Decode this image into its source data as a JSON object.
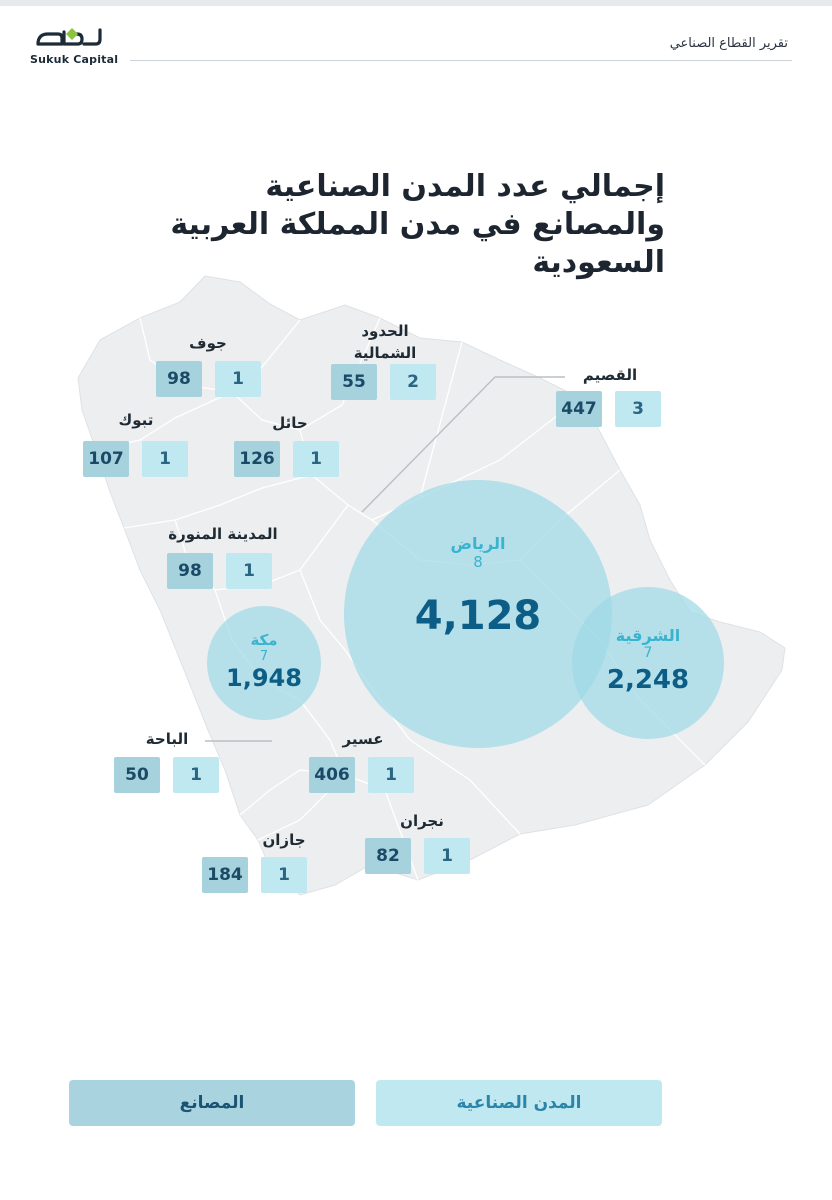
{
  "header": {
    "logo_arabic": "صكوك",
    "logo_latin": "Sukuk Capital",
    "report_title": "تقرير القطاع الصناعي"
  },
  "title": "إجمالي عدد المدن الصناعية والمصانع في مدن المملكة العربية السعودية",
  "regions": [
    {
      "id": "jouf",
      "name": "جوف",
      "factories": "98",
      "cities": "1"
    },
    {
      "id": "northern",
      "name": "الحدود الشمالية",
      "factories": "55",
      "cities": "2"
    },
    {
      "id": "qassim",
      "name": "القصيم",
      "factories": "447",
      "cities": "3"
    },
    {
      "id": "tabuk",
      "name": "تبوك",
      "factories": "107",
      "cities": "1"
    },
    {
      "id": "hail",
      "name": "حائل",
      "factories": "126",
      "cities": "1"
    },
    {
      "id": "madinah",
      "name": "المدينة المنورة",
      "factories": "98",
      "cities": "1"
    },
    {
      "id": "baha",
      "name": "الباحة",
      "factories": "50",
      "cities": "1"
    },
    {
      "id": "asir",
      "name": "عسير",
      "factories": "406",
      "cities": "1"
    },
    {
      "id": "najran",
      "name": "نجران",
      "factories": "82",
      "cities": "1"
    },
    {
      "id": "jazan",
      "name": "جازان",
      "factories": "184",
      "cities": "1"
    }
  ],
  "circles": [
    {
      "id": "riyadh",
      "name": "الرياض",
      "cities": "8",
      "factories": "4,128"
    },
    {
      "id": "eastern",
      "name": "الشرقية",
      "cities": "7",
      "factories": "2,248"
    },
    {
      "id": "makkah",
      "name": "مكة",
      "cities": "7",
      "factories": "1,948"
    }
  ],
  "legend": {
    "factories": "المصانع",
    "industrial_cities": "المدن الصناعية"
  },
  "colors": {
    "map_fill": "#eceef0",
    "circle": "#9fd9e6",
    "factories_box": "#a6d2de",
    "cities_box": "#bfe8f1",
    "value_text": "#0c5e86"
  }
}
